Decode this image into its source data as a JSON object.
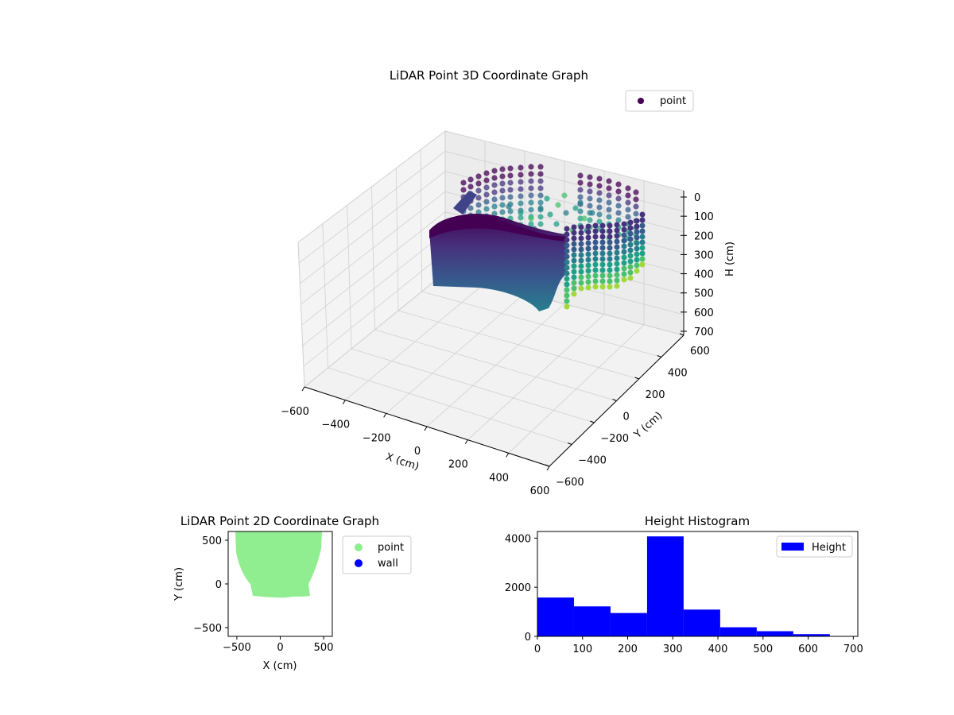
{
  "chart_data": [
    {
      "type": "scatter3d",
      "title": "LiDAR Point 3D Coordinate Graph",
      "xlabel": "X (cm)",
      "ylabel": "Y (cm)",
      "zlabel": "H (cm)",
      "xlim": [
        -600,
        600
      ],
      "ylim": [
        -600,
        600
      ],
      "zlim": [
        0,
        700
      ],
      "z_inverted": true,
      "x_ticks": [
        "−600",
        "−400",
        "−200",
        "0",
        "200",
        "400",
        "600"
      ],
      "y_ticks": [
        "−600",
        "−400",
        "−200",
        "0",
        "200",
        "400",
        "600"
      ],
      "z_ticks": [
        "0",
        "100",
        "200",
        "300",
        "400",
        "500",
        "600",
        "700"
      ],
      "legend": [
        "point"
      ],
      "legend_position": "top-right",
      "colormap": "viridis",
      "grid": true
    },
    {
      "type": "scatter",
      "title": "LiDAR Point 2D Coordinate Graph",
      "xlabel": "X (cm)",
      "ylabel": "Y (cm)",
      "xlim": [
        -600,
        600
      ],
      "ylim": [
        -600,
        600
      ],
      "x_ticks": [
        "−500",
        "0",
        "500"
      ],
      "y_ticks": [
        "−500",
        "0",
        "500"
      ],
      "series": [
        {
          "name": "point",
          "color": "#90ee90"
        },
        {
          "name": "wall",
          "color": "#0000ff"
        }
      ],
      "legend_position": "outside-right"
    },
    {
      "type": "bar",
      "title": "Height Histogram",
      "bin_edges": [
        0,
        81,
        162,
        243,
        324,
        405,
        486,
        567,
        648
      ],
      "values": [
        1580,
        1220,
        950,
        4070,
        1090,
        370,
        210,
        90
      ],
      "xlim": [
        0,
        710
      ],
      "ylim": [
        0,
        4270
      ],
      "x_ticks": [
        "0",
        "100",
        "200",
        "300",
        "400",
        "500",
        "600",
        "700"
      ],
      "y_ticks": [
        "0",
        "2000",
        "4000"
      ],
      "series": [
        {
          "name": "Height",
          "color": "#0000ff"
        }
      ],
      "legend_position": "top-right"
    }
  ]
}
